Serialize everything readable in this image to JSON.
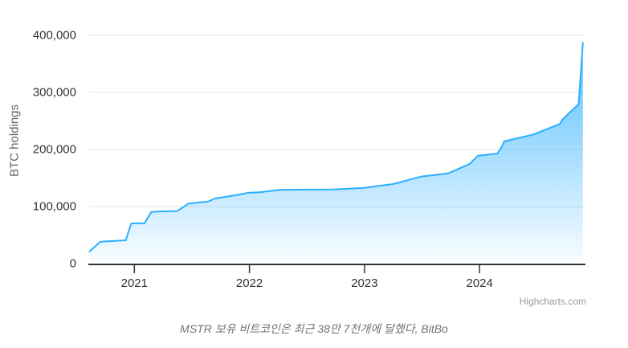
{
  "page": {
    "background": "#ffffff"
  },
  "colors": {
    "accent": "#2caffe",
    "grid": "#e6e6e6",
    "axis_line": "#333333",
    "tick_label": "#333333",
    "y_title": "#666666",
    "credit": "#9a9a9a",
    "caption": "#737373"
  },
  "labels": {
    "y_axis_title": "BTC holdings",
    "credit": "Highcharts.com",
    "caption": "MSTR 보유 비트코인은 최근 38만 7천개에 달했다, BitBo"
  },
  "chart_data": {
    "type": "area",
    "title": "",
    "xlabel": "",
    "ylabel": "BTC holdings",
    "ylim": [
      0,
      400000
    ],
    "x_range": [
      2020.6,
      2024.92
    ],
    "grid": true,
    "legend": false,
    "y_ticks": [
      {
        "v": 0,
        "label": "0"
      },
      {
        "v": 100000,
        "label": "100,000"
      },
      {
        "v": 200000,
        "label": "200,000"
      },
      {
        "v": 300000,
        "label": "300,000"
      },
      {
        "v": 400000,
        "label": "400,000"
      }
    ],
    "x_ticks": [
      {
        "t": 2021,
        "label": "2021"
      },
      {
        "t": 2022,
        "label": "2022"
      },
      {
        "t": 2023,
        "label": "2023"
      },
      {
        "t": 2024,
        "label": "2024"
      }
    ],
    "series": [
      {
        "name": "MSTR BTC holdings",
        "color": "#2caffe",
        "points": [
          [
            2020.611,
            21454
          ],
          [
            2020.704,
            38250
          ],
          [
            2020.925,
            40824
          ],
          [
            2020.973,
            70470
          ],
          [
            2021.088,
            70784
          ],
          [
            2021.148,
            90531
          ],
          [
            2021.192,
            91326
          ],
          [
            2021.258,
            91579
          ],
          [
            2021.375,
            92079
          ],
          [
            2021.468,
            105085
          ],
          [
            2021.644,
            108992
          ],
          [
            2021.699,
            114042
          ],
          [
            2021.91,
            121044
          ],
          [
            2021.995,
            124391
          ],
          [
            2022.086,
            125051
          ],
          [
            2022.258,
            129218
          ],
          [
            2022.491,
            129699
          ],
          [
            2022.719,
            130000
          ],
          [
            2022.989,
            132500
          ],
          [
            2023.233,
            138955
          ],
          [
            2023.258,
            140000
          ],
          [
            2023.488,
            152333
          ],
          [
            2023.731,
            158245
          ],
          [
            2023.912,
            174530
          ],
          [
            2023.986,
            189150
          ],
          [
            2024.155,
            193000
          ],
          [
            2024.192,
            205000
          ],
          [
            2024.214,
            214246
          ],
          [
            2024.468,
            226331
          ],
          [
            2024.699,
            244800
          ],
          [
            2024.718,
            252220
          ],
          [
            2024.86,
            279420
          ],
          [
            2024.879,
            331200
          ],
          [
            2024.898,
            386700
          ]
        ]
      }
    ]
  }
}
